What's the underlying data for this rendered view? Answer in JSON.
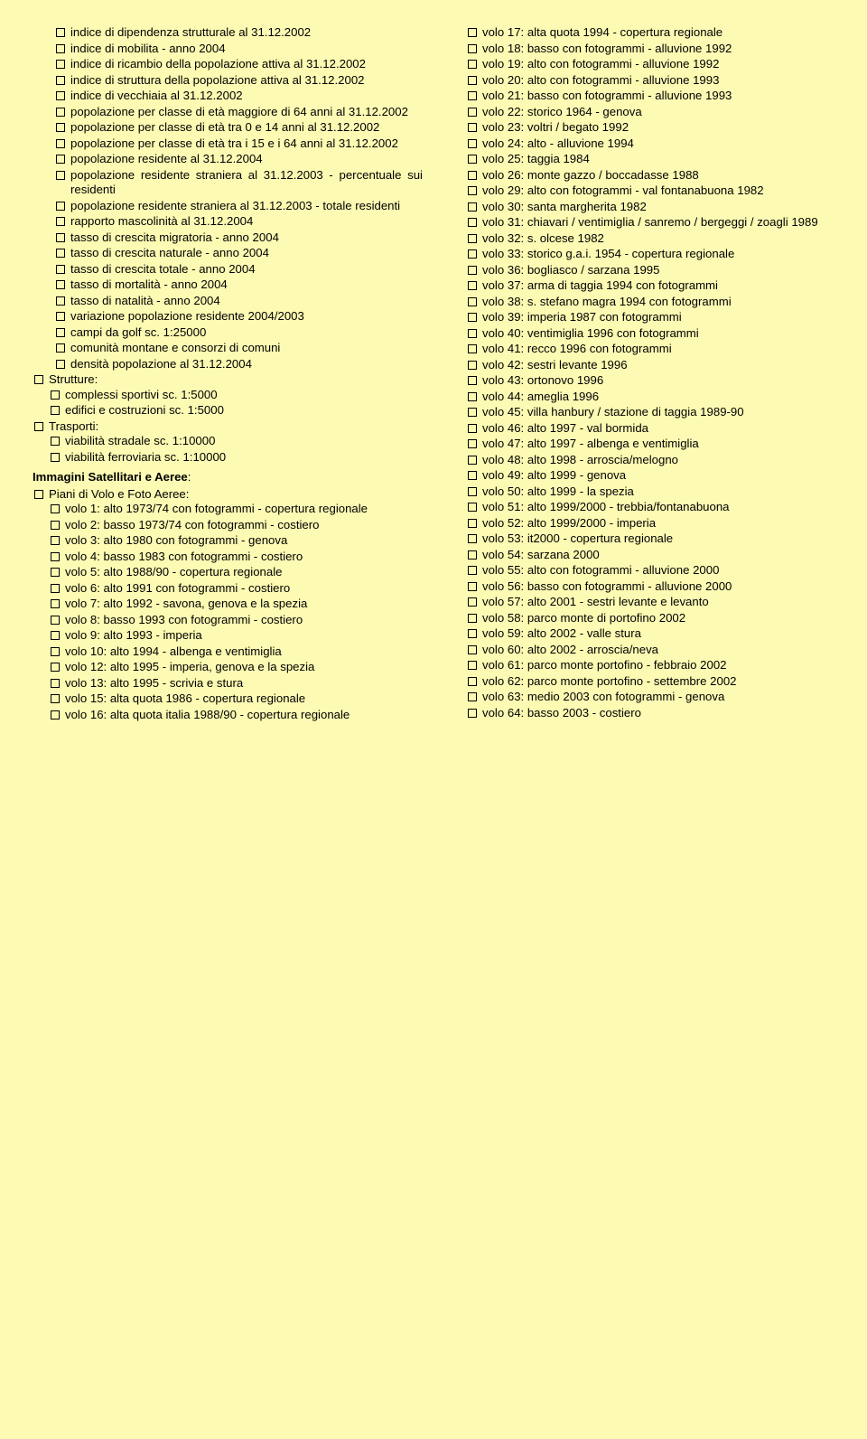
{
  "background_color": "#fdfab3",
  "text_color": "#000000",
  "font_family": "Arial",
  "font_size_pt": 10,
  "columns": {
    "left": {
      "groups": [
        {
          "heading": null,
          "items": [
            "indice di dipendenza strutturale al 31.12.2002",
            "indice di mobilita - anno 2004",
            "indice di ricambio della popolazione attiva al 31.12.2002",
            "indice di struttura della popolazione attiva al 31.12.2002",
            "indice di vecchiaia al 31.12.2002",
            "popolazione per classe di età maggiore di 64 anni al 31.12.2002",
            "popolazione per classe di età tra 0 e 14 anni al 31.12.2002",
            "popolazione per classe di età tra i 15 e i 64 anni al 31.12.2002",
            "popolazione residente al 31.12.2004",
            "popolazione residente straniera al 31.12.2003 - percentuale sui residenti",
            "popolazione residente straniera al 31.12.2003 - totale residenti",
            "rapporto mascolinità al 31.12.2004",
            "tasso di crescita migratoria - anno 2004",
            "tasso di crescita naturale - anno 2004",
            "tasso di crescita totale - anno 2004",
            "tasso di mortalità - anno 2004",
            "tasso di natalità - anno 2004",
            "variazione popolazione residente 2004/2003",
            "campi da golf sc. 1:25000",
            "comunità montane e consorzi di comuni",
            "densità popolazione al 31.12.2004"
          ]
        },
        {
          "heading": "Strutture:",
          "items": [
            "complessi sportivi sc. 1:5000",
            "edifici e costruzioni sc. 1:5000"
          ]
        },
        {
          "heading": "Trasporti:",
          "items": [
            "viabilità stradale sc. 1:10000",
            "viabilità ferroviaria sc. 1:10000"
          ]
        }
      ],
      "satellite_heading": "Immagini Satellitari e Aeree",
      "piani_heading": "Piani di Volo e Foto Aeree:",
      "voli": [
        "volo 1: alto 1973/74 con fotogrammi - copertura regionale",
        "volo 2: basso 1973/74 con fotogrammi - costiero",
        "volo 3: alto 1980 con fotogrammi - genova",
        "volo 4: basso 1983 con fotogrammi - costiero",
        "volo 5: alto 1988/90 - copertura regionale",
        "volo 6: alto 1991 con fotogrammi - costiero",
        "volo 7: alto 1992 - savona, genova e la spezia",
        "volo 8: basso 1993 con fotogrammi - costiero",
        "volo 9: alto 1993 - imperia",
        "volo 10: alto 1994 - albenga e ventimiglia",
        "volo 12: alto 1995 - imperia, genova e la spezia",
        "volo 13: alto 1995 - scrivia e stura",
        "volo 15: alta quota 1986 - copertura regionale",
        "volo 16: alta quota italia 1988/90 - copertura regionale"
      ]
    },
    "right": {
      "voli": [
        "volo 17: alta quota 1994 - copertura regionale",
        "volo 18: basso con fotogrammi - alluvione 1992",
        "volo 19: alto con fotogrammi - alluvione 1992",
        "volo 20: alto con fotogrammi - alluvione 1993",
        "volo 21: basso con fotogrammi - alluvione 1993",
        "volo 22: storico 1964 - genova",
        "volo 23: voltri / begato 1992",
        "volo 24: alto - alluvione 1994",
        "volo 25: taggia 1984",
        "volo 26: monte gazzo / boccadasse 1988",
        "volo 29: alto con fotogrammi - val fontanabuona 1982",
        "volo 30: santa margherita 1982",
        "volo 31: chiavari / ventimiglia / sanremo / bergeggi / zoagli 1989",
        "volo 32: s. olcese 1982",
        "volo 33: storico g.a.i. 1954 - copertura regionale",
        "volo 36: bogliasco / sarzana 1995",
        "volo 37: arma di taggia 1994 con fotogrammi",
        "volo 38: s. stefano magra 1994 con fotogrammi",
        "volo 39: imperia 1987 con fotogrammi",
        "volo 40: ventimiglia 1996 con fotogrammi",
        "volo 41: recco 1996 con fotogrammi",
        "volo 42: sestri levante 1996",
        "volo 43: ortonovo 1996",
        "volo 44: ameglia 1996",
        "volo 45: villa hanbury / stazione di taggia 1989-90",
        "volo 46: alto 1997 - val bormida",
        "volo 47: alto 1997 - albenga e ventimiglia",
        "volo 48: alto 1998 - arroscia/melogno",
        "volo 49: alto 1999 - genova",
        "volo 50: alto 1999 - la spezia",
        "volo 51: alto 1999/2000 - trebbia/fontanabuona",
        "volo 52: alto 1999/2000 - imperia",
        "volo 53: it2000 - copertura regionale",
        "volo 54: sarzana 2000",
        "volo 55: alto con fotogrammi - alluvione 2000",
        "volo 56: basso con fotogrammi - alluvione 2000",
        "volo 57: alto 2001 - sestri levante e levanto",
        "volo 58: parco monte di portofino 2002",
        "volo 59: alto 2002 - valle stura",
        "volo 60: alto 2002 - arroscia/neva",
        "volo 61: parco monte portofino - febbraio 2002",
        "volo 62: parco monte portofino - settembre 2002",
        "volo 63: medio 2003 con fotogrammi - genova",
        "volo 64: basso 2003 - costiero"
      ]
    }
  }
}
